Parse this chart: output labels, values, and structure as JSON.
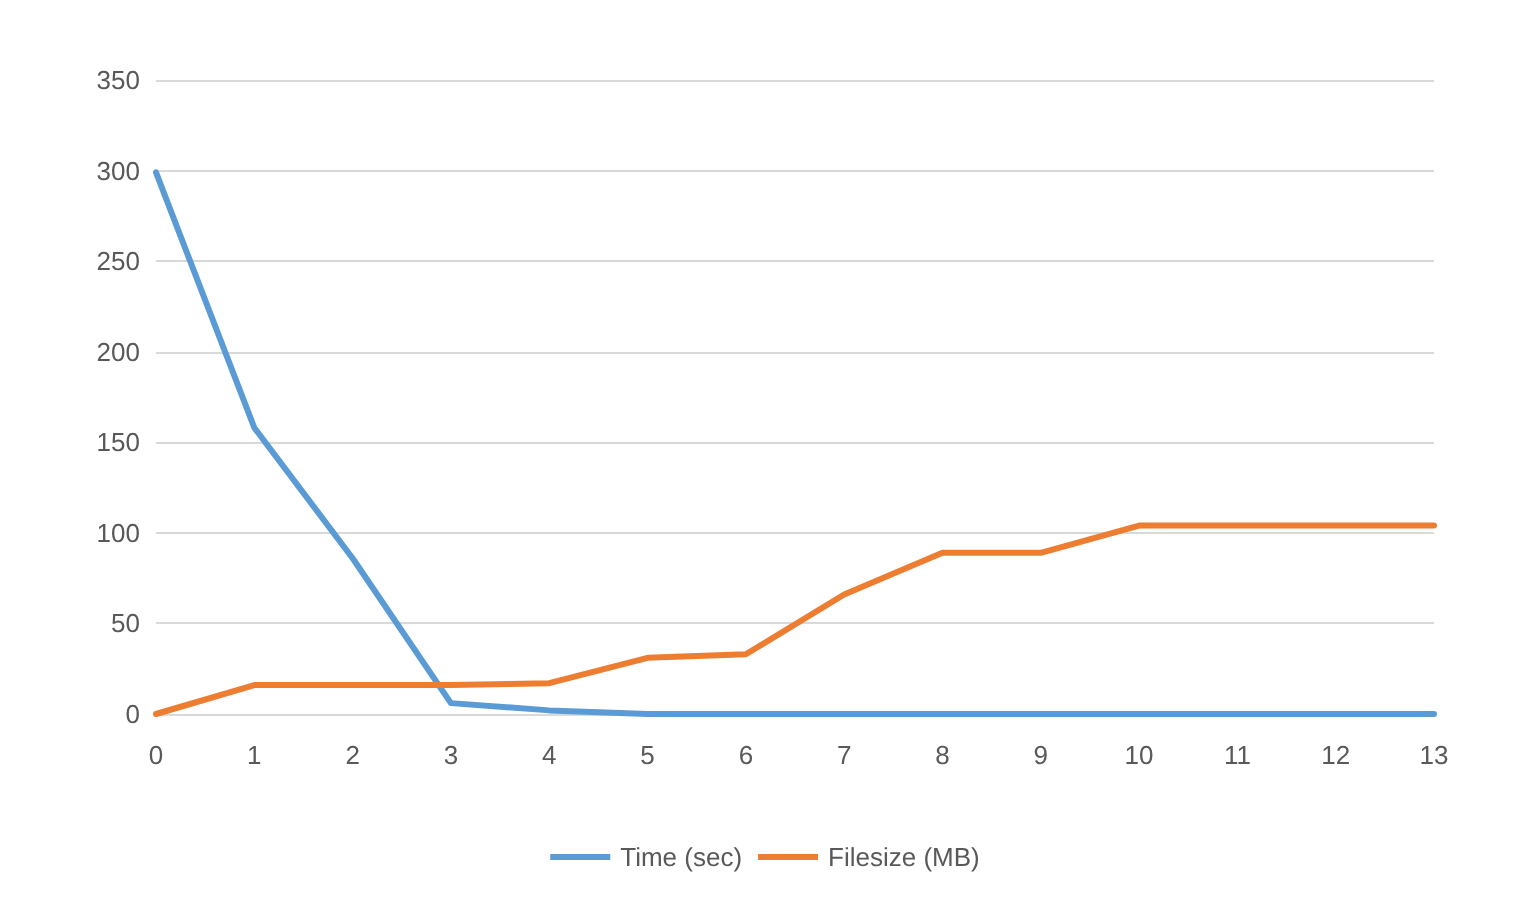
{
  "chart_data": {
    "type": "line",
    "x": [
      0,
      1,
      2,
      3,
      4,
      5,
      6,
      7,
      8,
      9,
      10,
      11,
      12,
      13
    ],
    "xlim": [
      0,
      13
    ],
    "xticks": [
      0,
      1,
      2,
      3,
      4,
      5,
      6,
      7,
      8,
      9,
      10,
      11,
      12,
      13
    ],
    "series": [
      {
        "name": "Time (sec)",
        "color": "#5b9bd5",
        "values": [
          299,
          158,
          86,
          6,
          2,
          0,
          0,
          0,
          0,
          0,
          0,
          0,
          0,
          0
        ]
      },
      {
        "name": "Filesize (MB)",
        "color": "#ed7d31",
        "values": [
          0,
          16,
          16,
          16,
          17,
          31,
          33,
          66,
          89,
          89,
          104,
          104,
          104,
          104
        ]
      }
    ],
    "ylim": [
      0,
      350
    ],
    "yticks": [
      0,
      50,
      100,
      150,
      200,
      250,
      300,
      350
    ],
    "grid": "y",
    "legend": "bottom",
    "marker": "none",
    "line_style": "solid"
  }
}
